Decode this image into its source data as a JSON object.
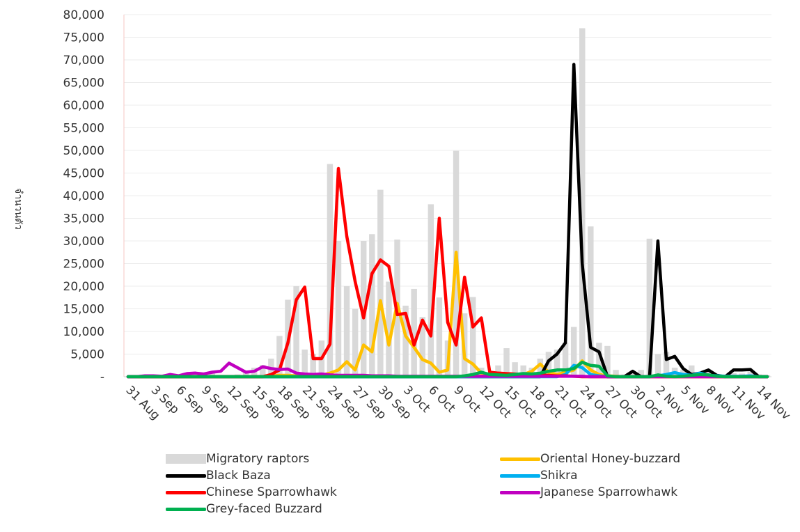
{
  "chart_data": {
    "type": "bar+line",
    "ylabel": "จำนวนตัว",
    "ylim": [
      0,
      80000
    ],
    "y_ticks": [
      "-",
      "5,000",
      "10,000",
      "15,000",
      "20,000",
      "25,000",
      "30,000",
      "35,000",
      "40,000",
      "45,000",
      "50,000",
      "55,000",
      "60,000",
      "65,000",
      "70,000",
      "75,000",
      "80,000"
    ],
    "x_labels": [
      "31 Aug",
      "3 Sep",
      "6 Sep",
      "9 Sep",
      "12 Sep",
      "15 Sep",
      "18 Sep",
      "21 Sep",
      "24 Sep",
      "27 Sep",
      "30 Sep",
      "3 Oct",
      "6 Oct",
      "9 Oct",
      "12 Oct",
      "15 Oct",
      "18 Oct",
      "21 Oct",
      "24 Oct",
      "27 Oct",
      "30 Oct",
      "2 Nov",
      "5 Nov",
      "8 Nov",
      "11 Nov",
      "14 Nov"
    ],
    "n_days": 77,
    "grid": true,
    "legend_position": "bottom",
    "series": [
      {
        "name": "Migratory raptors",
        "kind": "bar",
        "color": "#d9d9d9",
        "values": [
          0,
          0,
          0,
          0,
          0,
          0,
          200,
          300,
          300,
          500,
          1000,
          300,
          300,
          500,
          1000,
          2000,
          2600,
          4000,
          9000,
          17000,
          20000,
          6000,
          5000,
          8000,
          47000,
          30000,
          20000,
          15000,
          30000,
          31500,
          41300,
          21000,
          30300,
          15700,
          19400,
          13200,
          38100,
          17500,
          8000,
          49900,
          14000,
          17600,
          2000,
          1000,
          2500,
          6300,
          3200,
          2500,
          2000,
          4000,
          5500,
          6000,
          7500,
          11000,
          77000,
          33200,
          7500,
          6800,
          1500,
          500,
          1000,
          1500,
          30500,
          5000,
          5500,
          2000,
          1500,
          2500,
          1000,
          1200,
          500,
          500,
          800,
          700,
          1200,
          500,
          300
        ]
      },
      {
        "name": "Oriental Honey-buzzard",
        "kind": "line",
        "color": "#ffc000",
        "values": [
          0,
          0,
          0,
          0,
          0,
          0,
          0,
          0,
          0,
          0,
          0,
          0,
          0,
          0,
          0,
          0,
          0,
          200,
          300,
          300,
          200,
          200,
          200,
          300,
          800,
          1500,
          3300,
          1500,
          7000,
          5500,
          16800,
          7000,
          16200,
          9000,
          6500,
          3800,
          3000,
          1000,
          1500,
          27500,
          4000,
          2800,
          800,
          500,
          300,
          500,
          400,
          500,
          1200,
          2800,
          1000,
          500,
          1000,
          1500,
          3500,
          1500,
          500,
          200,
          100,
          0,
          0,
          0,
          0,
          0,
          0,
          0,
          0,
          0,
          0,
          0,
          0,
          0,
          0,
          0,
          0,
          0,
          0
        ]
      },
      {
        "name": "Black Baza",
        "kind": "line",
        "color": "#000000",
        "values": [
          0,
          0,
          0,
          0,
          0,
          0,
          0,
          0,
          0,
          0,
          0,
          0,
          0,
          0,
          0,
          0,
          0,
          0,
          0,
          0,
          0,
          0,
          0,
          0,
          0,
          0,
          0,
          0,
          0,
          0,
          0,
          0,
          0,
          0,
          0,
          0,
          0,
          0,
          0,
          0,
          0,
          0,
          0,
          0,
          0,
          0,
          0,
          0,
          0,
          0,
          3500,
          5000,
          7500,
          69000,
          25000,
          6500,
          5500,
          0,
          0,
          0,
          1200,
          0,
          0,
          30000,
          3800,
          4500,
          1800,
          500,
          800,
          1500,
          300,
          0,
          1500,
          1500,
          1600,
          0,
          0
        ]
      },
      {
        "name": "Shikra",
        "kind": "line",
        "color": "#00b0f0",
        "values": [
          0,
          0,
          0,
          0,
          0,
          0,
          0,
          0,
          0,
          0,
          0,
          0,
          0,
          0,
          0,
          0,
          0,
          0,
          0,
          0,
          0,
          0,
          0,
          0,
          0,
          0,
          0,
          0,
          0,
          0,
          0,
          0,
          0,
          0,
          0,
          0,
          0,
          0,
          0,
          0,
          0,
          0,
          0,
          0,
          0,
          0,
          0,
          0,
          0,
          0,
          0,
          0,
          500,
          2500,
          2000,
          500,
          200,
          0,
          0,
          0,
          0,
          0,
          0,
          200,
          500,
          900,
          500,
          300,
          800,
          300,
          200,
          100,
          100,
          100,
          200,
          0,
          0
        ]
      },
      {
        "name": "Chinese Sparrowhawk",
        "kind": "line",
        "color": "#ff0000",
        "values": [
          0,
          0,
          0,
          0,
          0,
          0,
          0,
          0,
          0,
          0,
          0,
          0,
          0,
          0,
          0,
          0,
          0,
          500,
          1500,
          7500,
          17000,
          19800,
          4000,
          4000,
          7200,
          46000,
          31000,
          21000,
          13000,
          22800,
          25800,
          24400,
          13700,
          14000,
          7000,
          12500,
          9000,
          35000,
          12000,
          7000,
          22000,
          11000,
          13000,
          1000,
          800,
          700,
          600,
          500,
          500,
          400,
          300,
          200,
          200,
          100,
          0,
          0,
          0,
          0,
          0,
          0,
          0,
          0,
          0,
          0,
          0,
          0,
          0,
          0,
          0,
          0,
          0,
          0,
          0,
          0,
          0,
          0,
          0
        ]
      },
      {
        "name": "Japanese Sparrowhawk",
        "kind": "line",
        "color": "#c000c0",
        "values": [
          0,
          0,
          200,
          200,
          100,
          500,
          200,
          700,
          800,
          600,
          1000,
          1200,
          3000,
          2000,
          1000,
          1200,
          2200,
          1800,
          1600,
          1700,
          800,
          600,
          500,
          600,
          400,
          300,
          300,
          300,
          300,
          200,
          200,
          200,
          100,
          100,
          100,
          100,
          100,
          100,
          100,
          100,
          100,
          100,
          100,
          100,
          100,
          100,
          100,
          100,
          100,
          100,
          100,
          100,
          100,
          100,
          100,
          0,
          0,
          0,
          0,
          0,
          0,
          0,
          0,
          0,
          0,
          0,
          0,
          0,
          0,
          0,
          0,
          0,
          0,
          0,
          0,
          0,
          0
        ]
      },
      {
        "name": "Grey-faced Buzzard",
        "kind": "line",
        "color": "#00b050",
        "values": [
          0,
          0,
          0,
          0,
          0,
          0,
          0,
          0,
          0,
          0,
          0,
          0,
          0,
          0,
          0,
          0,
          0,
          0,
          0,
          0,
          0,
          0,
          0,
          0,
          0,
          0,
          0,
          0,
          0,
          0,
          0,
          0,
          0,
          0,
          0,
          0,
          0,
          0,
          0,
          0,
          200,
          500,
          1000,
          500,
          400,
          300,
          500,
          700,
          600,
          800,
          1200,
          1500,
          1500,
          1800,
          3200,
          2500,
          2300,
          200,
          0,
          0,
          0,
          0,
          0,
          400,
          100,
          0,
          100,
          300,
          500,
          400,
          100,
          0,
          0,
          0,
          0,
          0,
          0
        ]
      }
    ]
  }
}
